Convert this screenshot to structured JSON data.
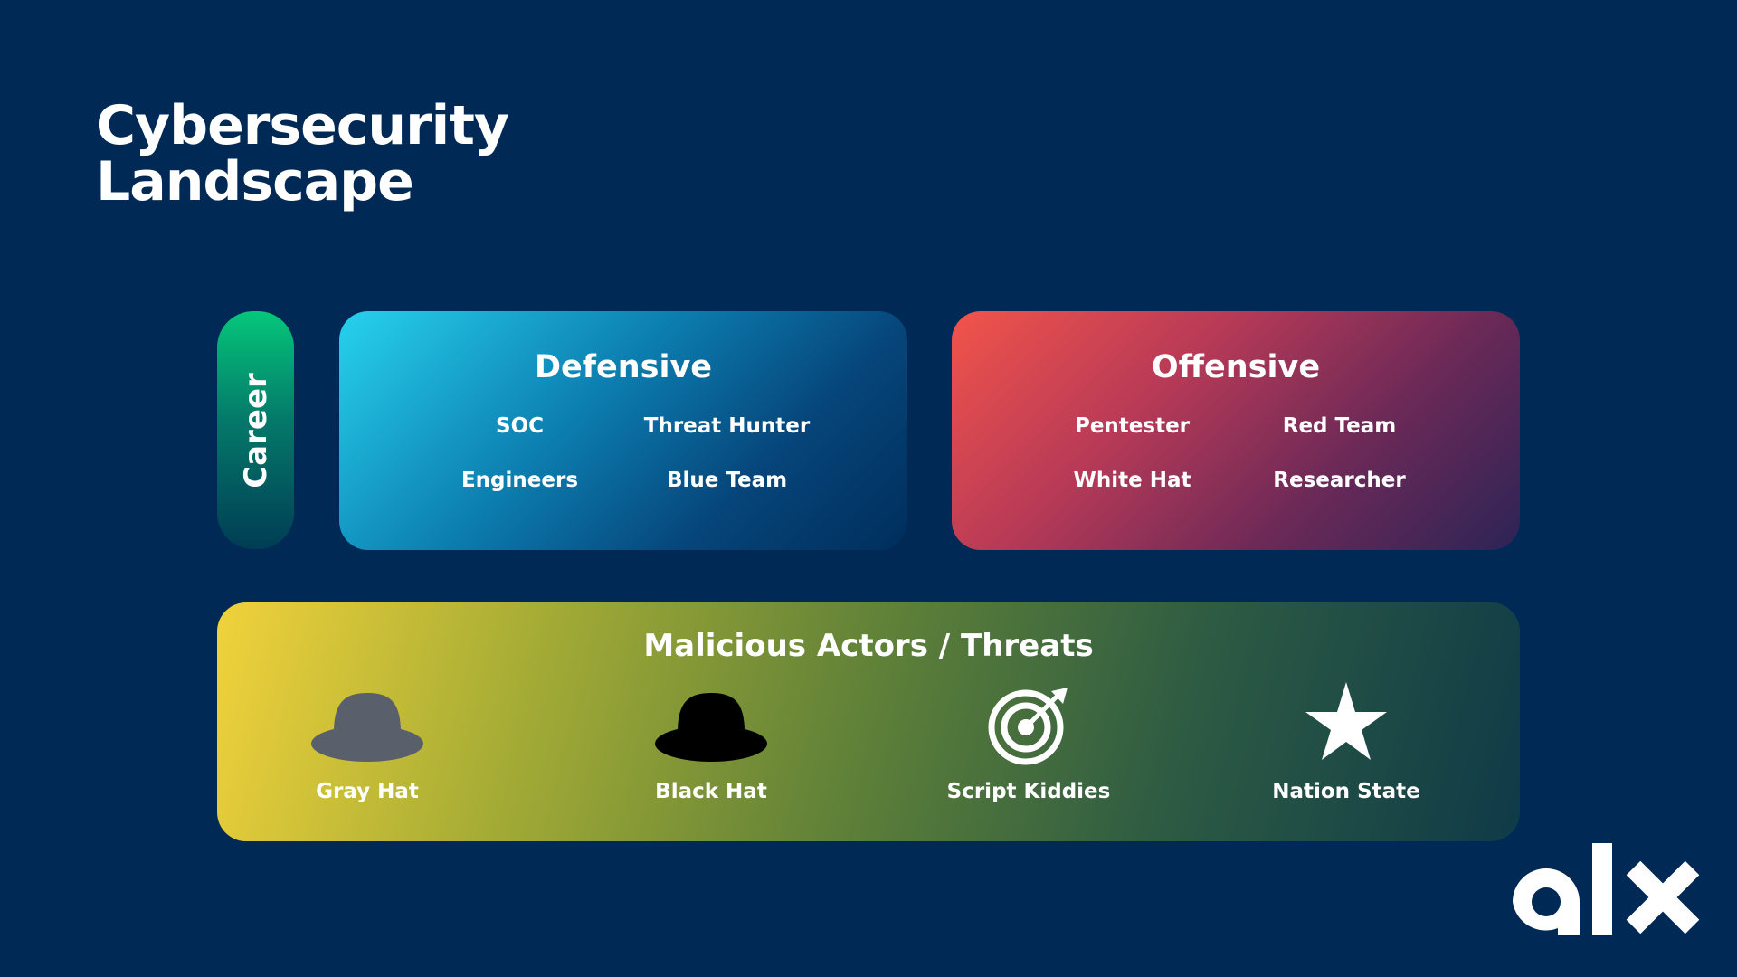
{
  "title": {
    "line1": "Cybersecurity",
    "line2": "Landscape"
  },
  "career": {
    "label": "Career",
    "color": "#05C77A"
  },
  "defensive": {
    "title": "Defensive",
    "roles": [
      "SOC",
      "Threat Hunter",
      "Engineers",
      "Blue Team"
    ],
    "color": "#27D2EE"
  },
  "offensive": {
    "title": "Offensive",
    "roles": [
      "Pentester",
      "Red Team",
      "White Hat",
      "Researcher"
    ],
    "color": "#F2544A"
  },
  "threats": {
    "title": "Malicious Actors / Threats",
    "items": [
      {
        "label": "Gray Hat",
        "icon": "gray-hat-icon",
        "color": "#5A5F6C"
      },
      {
        "label": "Black Hat",
        "icon": "black-hat-icon",
        "color": "#000000"
      },
      {
        "label": "Script Kiddies",
        "icon": "target-icon",
        "color": "#FFFFFF"
      },
      {
        "label": "Nation State",
        "icon": "star-icon",
        "color": "#FFFFFF"
      }
    ]
  },
  "logo": {
    "icon": "alx-logo",
    "text": "alx"
  },
  "colors": {
    "background": "#002A55",
    "text": "#FFFFFF"
  }
}
